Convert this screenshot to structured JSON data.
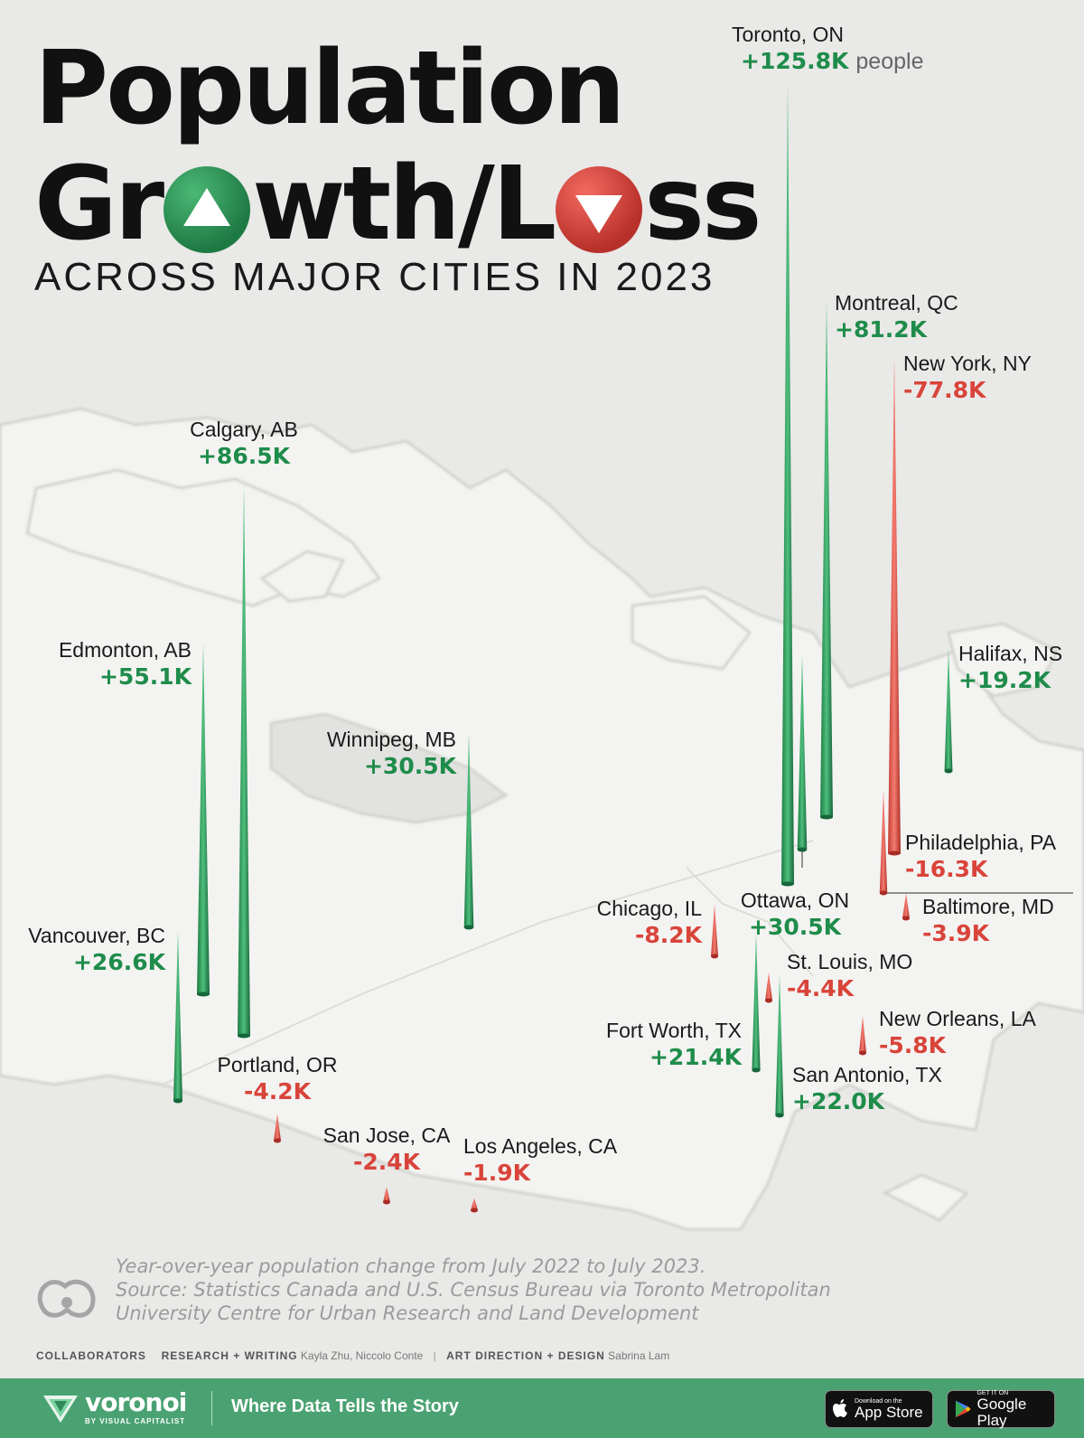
{
  "title": {
    "line1": "Population",
    "line2_a": "Gr",
    "line2_b": "wth/L",
    "line2_c": "ss",
    "subtitle": "ACROSS MAJOR CITIES IN 2023"
  },
  "colors": {
    "growth": "#1e8c4a",
    "loss": "#d9443a",
    "background": "#e9e9e7",
    "bar": "#4aa272"
  },
  "chart_data": {
    "type": "bar",
    "title": "Population Growth/Loss Across Major Cities in 2023",
    "unit_note": "people",
    "series": [
      {
        "city": "Toronto, ON",
        "label": "+125.8K",
        "value": 125.8
      },
      {
        "city": "Calgary, AB",
        "label": "+86.5K",
        "value": 86.5
      },
      {
        "city": "Montreal, QC",
        "label": "+81.2K",
        "value": 81.2
      },
      {
        "city": "New York, NY",
        "label": "-77.8K",
        "value": -77.8
      },
      {
        "city": "Edmonton, AB",
        "label": "+55.1K",
        "value": 55.1
      },
      {
        "city": "Winnipeg, MB",
        "label": "+30.5K",
        "value": 30.5
      },
      {
        "city": "Ottawa, ON",
        "label": "+30.5K",
        "value": 30.5
      },
      {
        "city": "Vancouver, BC",
        "label": "+26.6K",
        "value": 26.6
      },
      {
        "city": "San Antonio, TX",
        "label": "+22.0K",
        "value": 22.0
      },
      {
        "city": "Fort Worth, TX",
        "label": "+21.4K",
        "value": 21.4
      },
      {
        "city": "Halifax, NS",
        "label": "+19.2K",
        "value": 19.2
      },
      {
        "city": "Philadelphia, PA",
        "label": "-16.3K",
        "value": -16.3
      },
      {
        "city": "Chicago, IL",
        "label": "-8.2K",
        "value": -8.2
      },
      {
        "city": "New Orleans, LA",
        "label": "-5.8K",
        "value": -5.8
      },
      {
        "city": "St. Louis, MO",
        "label": "-4.4K",
        "value": -4.4
      },
      {
        "city": "Portland, OR",
        "label": "-4.2K",
        "value": -4.2
      },
      {
        "city": "Baltimore, MD",
        "label": "-3.9K",
        "value": -3.9
      },
      {
        "city": "San Jose, CA",
        "label": "-2.4K",
        "value": -2.4
      },
      {
        "city": "Los Angeles, CA",
        "label": "-1.9K",
        "value": -1.9
      }
    ]
  },
  "footnote": {
    "line1": "Year-over-year population change from July 2022 to July 2023.",
    "line2": "Source: Statistics Canada and U.S. Census Bureau via Toronto Metropolitan",
    "line3": "University Centre for Urban Research and Land Development"
  },
  "credits": {
    "collaborators": "COLLABORATORS",
    "research_label": "RESEARCH + WRITING",
    "research_names": "Kayla Zhu, Niccolo Conte",
    "separator": "|",
    "design_label": "ART DIRECTION + DESIGN",
    "design_names": "Sabrina Lam"
  },
  "footer": {
    "brand": "voronoi",
    "brand_sub": "BY VISUAL CAPITALIST",
    "tagline": "Where Data Tells the Story",
    "appstore_small": "Download on the",
    "appstore_big": "App Store",
    "googleplay_small": "GET IT ON",
    "googleplay_big": "Google Play"
  }
}
